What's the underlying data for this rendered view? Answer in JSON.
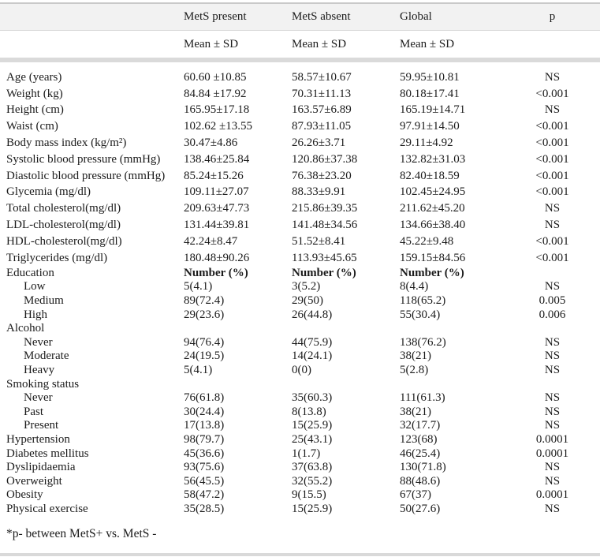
{
  "table": {
    "header": {
      "col1": "",
      "col2": "MetS present",
      "col3": "MetS absent",
      "col4": "Global",
      "col5": "p"
    },
    "subheader": {
      "col2": "Mean ± SD",
      "col3": "Mean ± SD",
      "col4": "Mean ± SD"
    },
    "rows": [
      {
        "label": "Age (years)",
        "indent": 0,
        "spacing": "wide",
        "cells": [
          "60.60 ±10.85",
          "58.57±10.67",
          "59.95±10.81"
        ],
        "p": "NS"
      },
      {
        "label": "Weight (kg)",
        "indent": 0,
        "spacing": "wide",
        "cells": [
          "84.84 ±17.92",
          "70.31±11.13",
          "80.18±17.41"
        ],
        "p": "<0.001"
      },
      {
        "label": "Height (cm)",
        "indent": 0,
        "spacing": "wide",
        "cells": [
          "165.95±17.18",
          "163.57±6.89",
          "165.19±14.71"
        ],
        "p": "NS"
      },
      {
        "label": "Waist (cm)",
        "indent": 0,
        "spacing": "wide",
        "cells": [
          "102.62 ±13.55",
          "87.93±11.05",
          "97.91±14.50"
        ],
        "p": "<0.001"
      },
      {
        "label": "Body mass index (kg/m²)",
        "indent": 0,
        "spacing": "wide",
        "cells": [
          "30.47±4.86",
          "26.26±3.71",
          "29.11±4.92"
        ],
        "p": "<0.001"
      },
      {
        "label": "Systolic blood pressure (mmHg)",
        "indent": 0,
        "spacing": "wide",
        "cells": [
          "138.46±25.84",
          "120.86±37.38",
          "132.82±31.03"
        ],
        "p": "<0.001"
      },
      {
        "label": "Diastolic blood pressure (mmHg)",
        "indent": 0,
        "spacing": "wide",
        "cells": [
          "85.24±15.26",
          "76.38±23.20",
          "82.40±18.59"
        ],
        "p": "<0.001"
      },
      {
        "label": "Glycemia (mg/dl)",
        "indent": 0,
        "spacing": "wide",
        "cells": [
          "109.11±27.07",
          "88.33±9.91",
          "102.45±24.95"
        ],
        "p": "<0.001"
      },
      {
        "label": "Total cholesterol(mg/dl)",
        "indent": 0,
        "spacing": "wide",
        "cells": [
          "209.63±47.73",
          "215.86±39.35",
          "211.62±45.20"
        ],
        "p": "NS"
      },
      {
        "label": "LDL-cholesterol(mg/dl)",
        "indent": 0,
        "spacing": "wide",
        "cells": [
          "131.44±39.81",
          "141.48±34.56",
          "134.66±38.40"
        ],
        "p": "NS"
      },
      {
        "label": "HDL-cholesterol(mg/dl)",
        "indent": 0,
        "spacing": "wide",
        "cells": [
          "42.24±8.47",
          "51.52±8.41",
          "45.22±9.48"
        ],
        "p": "<0.001"
      },
      {
        "label": "Triglycerides (mg/dl)",
        "indent": 0,
        "spacing": "wide",
        "cells": [
          "180.48±90.26",
          "113.93±45.65",
          "159.15±84.56"
        ],
        "p": "<0.001"
      },
      {
        "label": "Education",
        "indent": 0,
        "spacing": "narrow",
        "bold_cells": true,
        "cells": [
          "Number (%)",
          "Number (%)",
          "Number (%)"
        ],
        "p": ""
      },
      {
        "label": "Low",
        "indent": 1,
        "spacing": "narrow",
        "cells": [
          "5(4.1)",
          "3(5.2)",
          "8(4.4)"
        ],
        "p": "NS"
      },
      {
        "label": "Medium",
        "indent": 1,
        "spacing": "narrow",
        "cells": [
          "89(72.4)",
          "29(50)",
          "118(65.2)"
        ],
        "p": "0.005"
      },
      {
        "label": "High",
        "indent": 1,
        "spacing": "narrow",
        "cells": [
          "29(23.6)",
          "26(44.8)",
          "55(30.4)"
        ],
        "p": "0.006"
      },
      {
        "label": "Alcohol",
        "indent": 0,
        "spacing": "narrow",
        "cells": [
          "",
          "",
          ""
        ],
        "p": ""
      },
      {
        "label": "Never",
        "indent": 1,
        "spacing": "narrow",
        "cells": [
          "94(76.4)",
          "44(75.9)",
          "138(76.2)"
        ],
        "p": "NS"
      },
      {
        "label": "Moderate",
        "indent": 1,
        "spacing": "narrow",
        "cells": [
          "24(19.5)",
          "14(24.1)",
          "38(21)"
        ],
        "p": "NS"
      },
      {
        "label": "Heavy",
        "indent": 1,
        "spacing": "narrow",
        "cells": [
          "5(4.1)",
          "0(0)",
          "5(2.8)"
        ],
        "p": "NS"
      },
      {
        "label": "Smoking status",
        "indent": 0,
        "spacing": "narrow",
        "cells": [
          "",
          "",
          ""
        ],
        "p": ""
      },
      {
        "label": "Never",
        "indent": 1,
        "spacing": "narrow",
        "cells": [
          "76(61.8)",
          "35(60.3)",
          "111(61.3)"
        ],
        "p": "NS"
      },
      {
        "label": "Past",
        "indent": 1,
        "spacing": "narrow",
        "cells": [
          "30(24.4)",
          "8(13.8)",
          "38(21)"
        ],
        "p": "NS"
      },
      {
        "label": "Present",
        "indent": 1,
        "spacing": "narrow",
        "cells": [
          "17(13.8)",
          "15(25.9)",
          "32(17.7)"
        ],
        "p": "NS"
      },
      {
        "label": "Hypertension",
        "indent": 0,
        "spacing": "narrow",
        "cells": [
          "98(79.7)",
          "25(43.1)",
          "123(68)"
        ],
        "p": "0.0001"
      },
      {
        "label": "Diabetes mellitus",
        "indent": 0,
        "spacing": "narrow",
        "cells": [
          "45(36.6)",
          "1(1.7)",
          "46(25.4)"
        ],
        "p": "0.0001"
      },
      {
        "label": "Dyslipidaemia",
        "indent": 0,
        "spacing": "narrow",
        "cells": [
          "93(75.6)",
          "37(63.8)",
          "130(71.8)"
        ],
        "p": "NS"
      },
      {
        "label": "Overweight",
        "indent": 0,
        "spacing": "narrow",
        "cells": [
          "56(45.5)",
          "32(55.2)",
          "88(48.6)"
        ],
        "p": "NS"
      },
      {
        "label": "Obesity",
        "indent": 0,
        "spacing": "narrow",
        "cells": [
          "58(47.2)",
          "9(15.5)",
          "67(37)"
        ],
        "p": "0.0001"
      },
      {
        "label": "Physical exercise",
        "indent": 0,
        "spacing": "narrow",
        "cells": [
          "35(28.5)",
          "15(25.9)",
          "50(27.6)"
        ],
        "p": "NS"
      }
    ],
    "footnote": "*p- between MetS+ vs. MetS -"
  }
}
